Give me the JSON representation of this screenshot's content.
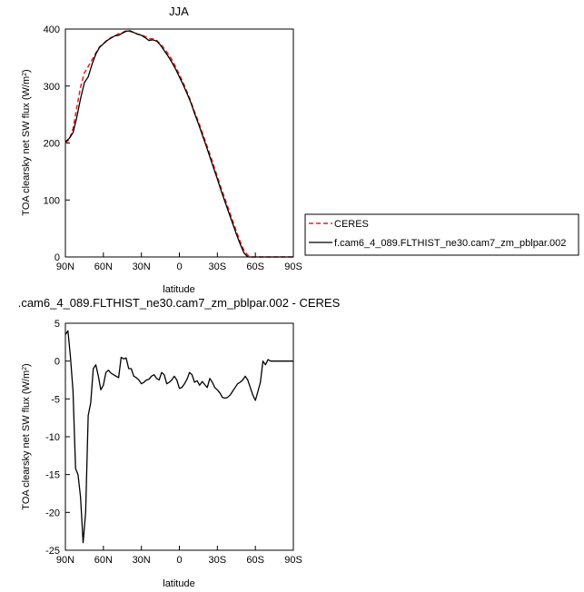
{
  "chart_data": [
    {
      "type": "line",
      "title": "JJA",
      "xlabel": "latitude",
      "ylabel": "TOA clearsky net SW flux (W/m",
      "ylabel_sup": "2",
      "ylabel_tail": ")",
      "xlim": [
        90,
        -90
      ],
      "ylim": [
        0,
        400
      ],
      "x_ticks": [
        90,
        60,
        30,
        0,
        -30,
        -60,
        -90
      ],
      "x_tick_labels": [
        "90N",
        "60N",
        "30N",
        "0",
        "30S",
        "60S",
        "90S"
      ],
      "y_ticks": [
        0,
        100,
        200,
        300,
        400
      ],
      "y_tick_labels": [
        "0",
        "100",
        "200",
        "300",
        "400"
      ],
      "grid": false,
      "legend_position": "right-bottom",
      "series": [
        {
          "name": "CERES",
          "color": "#e8201b",
          "dash": "dashed",
          "x": [
            90,
            87,
            84,
            81,
            78,
            75,
            72,
            69,
            66,
            63,
            60,
            57,
            54,
            51,
            48,
            45,
            42,
            39,
            36,
            33,
            30,
            27,
            24,
            21,
            18,
            15,
            12,
            9,
            6,
            3,
            0,
            -3,
            -6,
            -9,
            -12,
            -15,
            -18,
            -21,
            -24,
            -27,
            -30,
            -33,
            -36,
            -39,
            -42,
            -45,
            -48,
            -51,
            -54,
            -57,
            -60,
            -63,
            -66,
            -69,
            -72,
            -75,
            -78,
            -81,
            -84,
            -87,
            -90
          ],
          "values": [
            200,
            206,
            225,
            262,
            298,
            323,
            334,
            346,
            358,
            369,
            374,
            381,
            385,
            388,
            392,
            394,
            397,
            396,
            394,
            391,
            390,
            387,
            383,
            383,
            380,
            374,
            366,
            357,
            347,
            334,
            320,
            306,
            290,
            273,
            255,
            238,
            219,
            200,
            181,
            161,
            141,
            121,
            102,
            83,
            64,
            45,
            27,
            12,
            3,
            0,
            0,
            0,
            0,
            0,
            0,
            0,
            0,
            0,
            0,
            0,
            0
          ]
        },
        {
          "name": "f.cam6_4_089.FLTHIST_ne30.cam7_zm_pblpar.002",
          "color": "#000000",
          "dash": "solid",
          "x": [
            90,
            87,
            84,
            81,
            78,
            75,
            72,
            69,
            66,
            63,
            60,
            57,
            54,
            51,
            48,
            45,
            42,
            39,
            36,
            33,
            30,
            27,
            24,
            21,
            18,
            15,
            12,
            9,
            6,
            3,
            0,
            -3,
            -6,
            -9,
            -12,
            -15,
            -18,
            -21,
            -24,
            -27,
            -30,
            -33,
            -36,
            -39,
            -42,
            -45,
            -48,
            -51,
            -54,
            -57,
            -60,
            -63,
            -66,
            -69,
            -72,
            -75,
            -78,
            -81,
            -84,
            -87,
            -90
          ],
          "values": [
            202,
            208,
            218,
            245,
            278,
            306,
            316,
            338,
            356,
            368,
            374,
            380,
            384,
            388,
            389,
            393,
            396,
            397,
            394,
            391,
            389,
            385,
            380,
            381,
            379,
            372,
            362,
            353,
            342,
            330,
            316,
            302,
            287,
            271,
            252,
            234,
            215,
            196,
            176,
            156,
            137,
            116,
            97,
            78,
            59,
            40,
            23,
            7,
            0,
            0,
            0,
            0,
            0,
            0,
            0,
            0,
            0,
            0,
            0,
            0,
            0
          ]
        }
      ]
    },
    {
      "type": "line",
      "title": ".cam6_4_089.FLTHIST_ne30.cam7_zm_pblpar.002 - CERES",
      "xlabel": "latitude",
      "ylabel": "TOA clearsky net SW flux (W/m",
      "ylabel_sup": "2",
      "ylabel_tail": ")",
      "xlim": [
        90,
        -90
      ],
      "ylim": [
        -25,
        5
      ],
      "x_ticks": [
        90,
        60,
        30,
        0,
        -30,
        -60,
        -90
      ],
      "x_tick_labels": [
        "90N",
        "60N",
        "30N",
        "0",
        "30S",
        "60S",
        "90S"
      ],
      "y_ticks": [
        5,
        0,
        -5,
        -10,
        -15,
        -20,
        -25
      ],
      "y_tick_labels": [
        "5",
        "0",
        "-5",
        "-10",
        "-15",
        "-20",
        "-25"
      ],
      "grid": false,
      "series": [
        {
          "color": "#000000",
          "dash": "solid",
          "x": [
            90,
            88,
            86,
            84,
            82,
            80,
            78,
            76,
            74,
            72,
            70,
            68,
            66,
            64,
            62,
            60,
            58,
            56,
            54,
            52,
            50,
            48,
            46,
            44,
            42,
            40,
            38,
            36,
            34,
            32,
            30,
            28,
            26,
            24,
            22,
            20,
            18,
            16,
            14,
            12,
            10,
            8,
            6,
            4,
            2,
            0,
            -2,
            -4,
            -6,
            -8,
            -10,
            -12,
            -14,
            -16,
            -18,
            -20,
            -22,
            -24,
            -26,
            -28,
            -30,
            -32,
            -34,
            -36,
            -38,
            -40,
            -42,
            -44,
            -46,
            -48,
            -50,
            -52,
            -54,
            -56,
            -58,
            -60,
            -62,
            -64,
            -66,
            -68,
            -70,
            -72,
            -74,
            -76,
            -78,
            -80,
            -82,
            -84,
            -86,
            -88,
            -90
          ],
          "values": [
            3.5,
            4.0,
            0.5,
            -4.0,
            -14.2,
            -15.0,
            -18.0,
            -24.0,
            -20.0,
            -7.2,
            -5.5,
            -1.0,
            -0.5,
            -2.0,
            -3.8,
            -3.2,
            -1.5,
            -1.2,
            -1.6,
            -1.8,
            -2.0,
            -2.2,
            0.5,
            0.3,
            0.4,
            -1.0,
            -1.0,
            -2.0,
            -2.2,
            -2.5,
            -3.0,
            -2.8,
            -2.5,
            -2.4,
            -2.0,
            -1.8,
            -2.3,
            -2.5,
            -1.5,
            -1.8,
            -3.0,
            -2.8,
            -2.5,
            -2.0,
            -2.5,
            -3.6,
            -3.5,
            -3.0,
            -2.4,
            -1.5,
            -1.8,
            -2.8,
            -2.6,
            -3.2,
            -2.7,
            -3.1,
            -3.5,
            -2.3,
            -2.8,
            -3.5,
            -3.8,
            -4.2,
            -4.8,
            -4.9,
            -4.8,
            -4.5,
            -4.0,
            -3.5,
            -3.0,
            -2.8,
            -2.5,
            -2.0,
            -2.5,
            -3.5,
            -4.5,
            -5.2,
            -4.0,
            -2.8,
            0.0,
            -0.5,
            0.2,
            0.0,
            0.0,
            0.0,
            0.0,
            0.0,
            0.0,
            0.0,
            0.0,
            0.0,
            0.0
          ]
        }
      ]
    }
  ]
}
